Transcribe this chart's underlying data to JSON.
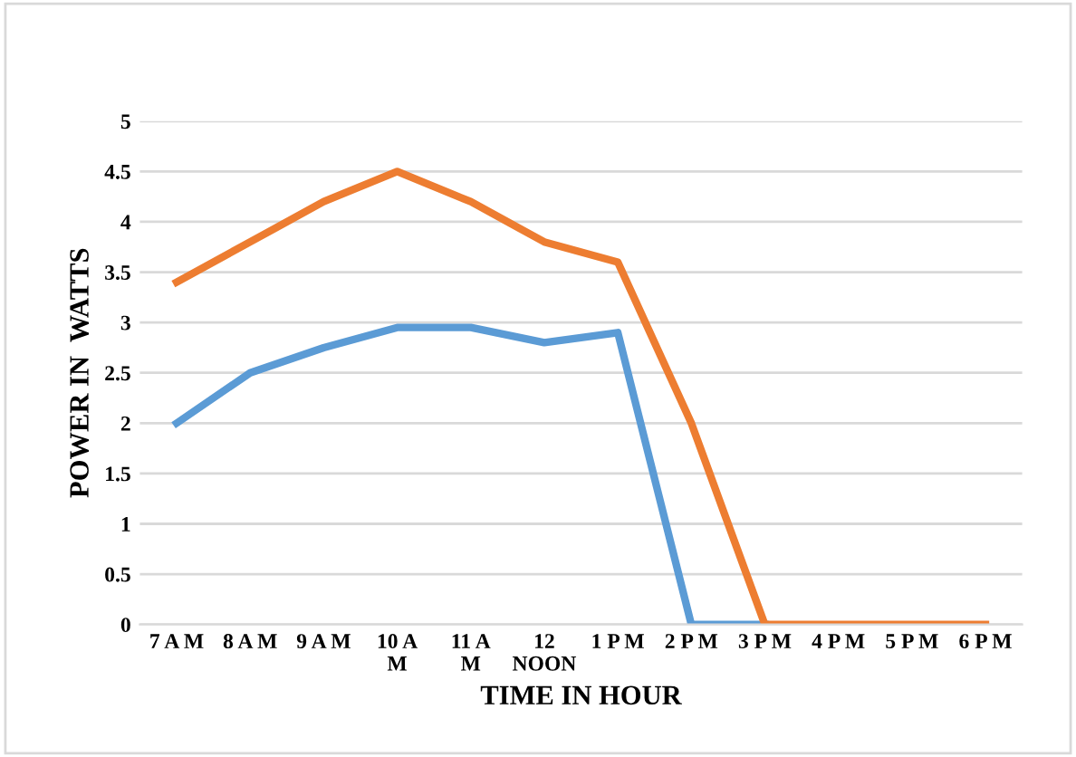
{
  "chart_data": {
    "type": "line",
    "xlabel": "TIME IN HOUR",
    "ylabel": "POWER IN  WATTS",
    "categories": [
      "7 A M",
      "8 A M",
      "9 A M",
      "10 A\nM",
      "11 A\nM",
      "12\nNOON",
      "1 P M",
      "2 P M",
      "3 P M",
      "4 P M",
      "5 P M",
      "6 P M"
    ],
    "series": [
      {
        "color": "#5b9bd5",
        "values": [
          2.0,
          2.5,
          2.75,
          2.95,
          2.95,
          2.8,
          2.9,
          0,
          0,
          null,
          null,
          null
        ]
      },
      {
        "color": "#ed7d31",
        "values": [
          3.4,
          3.8,
          4.2,
          4.5,
          4.2,
          3.8,
          3.6,
          2.0,
          0,
          0,
          0,
          0
        ]
      }
    ],
    "ylim": [
      0,
      5
    ],
    "yticks": [
      0,
      0.5,
      1,
      1.5,
      2,
      2.5,
      3,
      3.5,
      4,
      4.5,
      5
    ],
    "grid": "y",
    "marker": "none",
    "line_style": "solid"
  }
}
